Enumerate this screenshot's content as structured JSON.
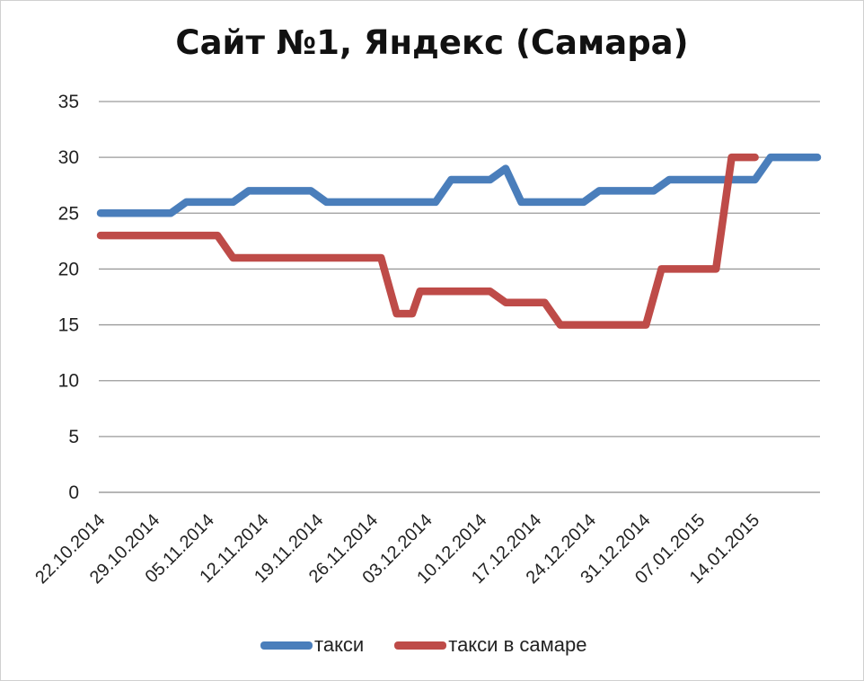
{
  "chart_data": {
    "type": "line",
    "title": "Сайт №1, Яндекс (Самара)",
    "ylim": [
      0,
      35
    ],
    "yticks": [
      "0",
      "5",
      "10",
      "15",
      "20",
      "25",
      "30",
      "35"
    ],
    "ytick_values": [
      0,
      5,
      10,
      15,
      20,
      25,
      30,
      35
    ],
    "categories": [
      "22.10.2014",
      "29.10.2014",
      "05.11.2014",
      "12.11.2014",
      "19.11.2014",
      "26.11.2014",
      "03.12.2014",
      "10.12.2014",
      "17.12.2014",
      "24.12.2014",
      "31.12.2014",
      "07.01.2015",
      "14.01.2015"
    ],
    "x_range_days": [
      0,
      92
    ],
    "grid": true,
    "legend_position": "bottom",
    "series": [
      {
        "name": "такси",
        "color": "#4a7ebb",
        "points": [
          [
            0,
            25
          ],
          [
            9,
            25
          ],
          [
            11,
            26
          ],
          [
            17,
            26
          ],
          [
            19,
            27
          ],
          [
            27,
            27
          ],
          [
            29,
            26
          ],
          [
            43,
            26
          ],
          [
            45,
            28
          ],
          [
            50,
            28
          ],
          [
            52,
            29
          ],
          [
            54,
            26
          ],
          [
            62,
            26
          ],
          [
            64,
            27
          ],
          [
            71,
            27
          ],
          [
            73,
            28
          ],
          [
            84,
            28
          ],
          [
            86,
            30
          ],
          [
            92,
            30
          ]
        ]
      },
      {
        "name": "такси в самаре",
        "color": "#be4b48",
        "points": [
          [
            0,
            23
          ],
          [
            15,
            23
          ],
          [
            17,
            21
          ],
          [
            36,
            21
          ],
          [
            38,
            16
          ],
          [
            40,
            16
          ],
          [
            41,
            18
          ],
          [
            50,
            18
          ],
          [
            52,
            17
          ],
          [
            57,
            17
          ],
          [
            59,
            15
          ],
          [
            70,
            15
          ],
          [
            72,
            20
          ],
          [
            79,
            20
          ],
          [
            81,
            30
          ],
          [
            84,
            30
          ]
        ]
      }
    ]
  }
}
